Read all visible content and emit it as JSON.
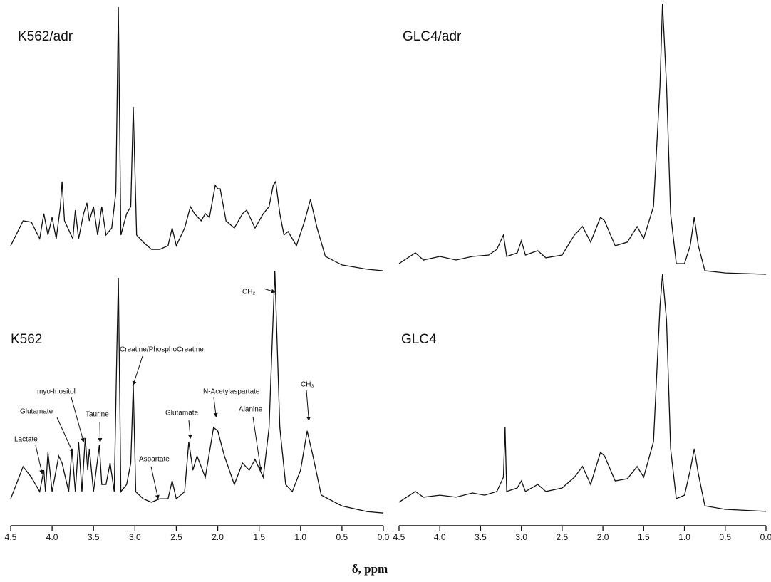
{
  "chart_data": [
    {
      "type": "line",
      "title": "K562/adr",
      "color": "#111",
      "xlim": [
        4.5,
        0.0
      ],
      "ylim": [
        0,
        100
      ],
      "x": [
        4.5,
        4.35,
        4.25,
        4.15,
        4.1,
        4.05,
        4.0,
        3.95,
        3.9,
        3.88,
        3.85,
        3.75,
        3.72,
        3.68,
        3.62,
        3.58,
        3.55,
        3.5,
        3.45,
        3.4,
        3.35,
        3.28,
        3.23,
        3.2,
        3.17,
        3.1,
        3.05,
        3.02,
        2.98,
        2.9,
        2.8,
        2.7,
        2.6,
        2.55,
        2.5,
        2.4,
        2.33,
        2.28,
        2.2,
        2.15,
        2.1,
        2.03,
        2.0,
        1.97,
        1.9,
        1.8,
        1.7,
        1.65,
        1.55,
        1.45,
        1.38,
        1.33,
        1.3,
        1.25,
        1.2,
        1.15,
        1.05,
        0.95,
        0.88,
        0.8,
        0.7,
        0.5,
        0.2,
        0.0
      ],
      "values": [
        10.7,
        20,
        19.5,
        13.3,
        22.7,
        14.7,
        21.3,
        13.3,
        25.3,
        34.7,
        20,
        13.3,
        24,
        13.3,
        22.7,
        26.7,
        20,
        25.3,
        14.7,
        25.3,
        14.7,
        17.3,
        30.7,
        100,
        14.7,
        22.7,
        25.3,
        62.7,
        14.7,
        12,
        9.3,
        9.3,
        10.7,
        17.3,
        10.7,
        17.3,
        25.3,
        22.7,
        20,
        22.7,
        21.3,
        33.3,
        32,
        32,
        20,
        17.3,
        22.7,
        24,
        17.3,
        22.7,
        25.3,
        33.3,
        34.7,
        22.7,
        14.7,
        16,
        10.7,
        20,
        28,
        17.3,
        6.7,
        3.5,
        1.9,
        1.3
      ]
    },
    {
      "type": "line",
      "title": "GLC4/adr",
      "color": "#111",
      "xlim": [
        4.5,
        0.0
      ],
      "ylim": [
        0,
        100
      ],
      "x": [
        4.5,
        4.3,
        4.2,
        4.0,
        3.8,
        3.6,
        3.4,
        3.3,
        3.22,
        3.18,
        3.05,
        3.0,
        2.95,
        2.8,
        2.7,
        2.5,
        2.35,
        2.25,
        2.15,
        2.03,
        1.98,
        1.85,
        1.7,
        1.58,
        1.5,
        1.38,
        1.3,
        1.27,
        1.22,
        1.17,
        1.1,
        1.0,
        0.93,
        0.88,
        0.83,
        0.75,
        0.5,
        0.0
      ],
      "values": [
        5.2,
        9.1,
        6.5,
        7.8,
        6.5,
        7.8,
        8.3,
        10.4,
        15.6,
        7.8,
        9.1,
        13.5,
        8.3,
        9.9,
        7.3,
        8.3,
        15.6,
        18.7,
        13,
        22.1,
        20.8,
        11.7,
        13,
        18.7,
        14.3,
        26,
        70.1,
        100,
        70.1,
        23.4,
        5.2,
        5.2,
        11.7,
        22.1,
        11.7,
        2.6,
        1.8,
        1.3
      ]
    },
    {
      "type": "line",
      "title": "K562",
      "color": "#111",
      "xlim": [
        4.5,
        0.0
      ],
      "ylim": [
        0,
        100
      ],
      "xlabel": "δ, ppm",
      "xticks": [
        4.5,
        {
          "value": 4,
          "label": "4.0"
        },
        3.5,
        {
          "value": 3,
          "label": "3.0"
        },
        2.5,
        {
          "value": 2,
          "label": "2.0"
        },
        1.5,
        {
          "value": 1,
          "label": "1.0"
        },
        0.5,
        {
          "value": 0,
          "label": "0.0"
        }
      ],
      "x": [
        4.5,
        4.35,
        4.25,
        4.15,
        4.1,
        4.08,
        4.05,
        4.0,
        3.92,
        3.88,
        3.8,
        3.76,
        3.72,
        3.68,
        3.64,
        3.6,
        3.57,
        3.55,
        3.5,
        3.43,
        3.4,
        3.35,
        3.3,
        3.25,
        3.22,
        3.2,
        3.17,
        3.1,
        3.05,
        3.02,
        2.99,
        2.9,
        2.8,
        2.7,
        2.6,
        2.55,
        2.5,
        2.4,
        2.35,
        2.3,
        2.25,
        2.15,
        2.05,
        2.0,
        1.92,
        1.8,
        1.7,
        1.62,
        1.55,
        1.45,
        1.38,
        1.31,
        1.25,
        1.18,
        1.1,
        1.0,
        0.92,
        0.85,
        0.75,
        0.5,
        0.2,
        0.0
      ],
      "values": [
        7.2,
        20.3,
        15.9,
        10.1,
        18.8,
        10.1,
        26.1,
        10.1,
        24.6,
        21.7,
        10.1,
        27.5,
        10.1,
        30.4,
        10.1,
        31.9,
        18.8,
        27.5,
        10.1,
        29,
        13,
        13,
        21.7,
        10.1,
        65.2,
        97.1,
        10.1,
        13,
        21.7,
        53.6,
        10.1,
        7.2,
        5.8,
        7.2,
        7.2,
        14.5,
        7.2,
        10.1,
        30.4,
        18.8,
        24.6,
        15.9,
        36.2,
        34.8,
        24.6,
        13,
        21.7,
        18.8,
        23.2,
        15.9,
        36.2,
        100,
        36.2,
        13,
        10.1,
        18.8,
        34.8,
        24.6,
        8.7,
        4.3,
        2,
        1.4
      ],
      "annotations": [
        {
          "label": "Lactate",
          "x": 4.12
        },
        {
          "label": "Glutamate",
          "x": 3.75
        },
        {
          "label": "myo-Inositol",
          "x": 3.62
        },
        {
          "label": "Taurine",
          "x": 3.42
        },
        {
          "label": "Creatine/PhosphoCreatine",
          "x": 3.02
        },
        {
          "label": "Aspartate",
          "x": 2.72
        },
        {
          "label": "Glutamate",
          "x": 2.33
        },
        {
          "label": "N-Acetylaspartate",
          "x": 2.02
        },
        {
          "label": "Alanine",
          "x": 1.48
        },
        {
          "label": "CH₂",
          "x": 1.31
        },
        {
          "label": "CH₃",
          "x": 0.9
        }
      ]
    },
    {
      "type": "line",
      "title": "GLC4",
      "color": "#111",
      "xlim": [
        4.5,
        0.0
      ],
      "ylim": [
        0,
        100
      ],
      "xticks": [
        4.5,
        {
          "value": 4,
          "label": "4.0"
        },
        3.5,
        {
          "value": 3,
          "label": "3.0"
        },
        2.5,
        {
          "value": 2,
          "label": "2.0"
        },
        1.5,
        {
          "value": 1,
          "label": "1.0"
        },
        0.5,
        {
          "value": 0,
          "label": "0.0"
        }
      ],
      "x": [
        4.5,
        4.3,
        4.2,
        4.0,
        3.8,
        3.6,
        3.45,
        3.3,
        3.22,
        3.2,
        3.18,
        3.05,
        3.0,
        2.95,
        2.8,
        2.7,
        2.5,
        2.35,
        2.25,
        2.15,
        2.03,
        1.98,
        1.85,
        1.7,
        1.58,
        1.5,
        1.38,
        1.3,
        1.27,
        1.22,
        1.17,
        1.1,
        1.0,
        0.93,
        0.88,
        0.83,
        0.75,
        0.5,
        0.0
      ],
      "values": [
        8.6,
        12.9,
        10.6,
        11.4,
        10.6,
        12.3,
        11.4,
        12.9,
        18.6,
        38.6,
        12.9,
        14.3,
        17.1,
        12.9,
        15.7,
        12.9,
        14.3,
        18.6,
        22.9,
        15.7,
        28.6,
        27.1,
        17.1,
        18,
        22.9,
        18.6,
        32.9,
        87.1,
        100,
        81.4,
        30,
        10,
        11.4,
        21.4,
        30,
        20,
        7.1,
        5.7,
        4.9
      ]
    }
  ]
}
